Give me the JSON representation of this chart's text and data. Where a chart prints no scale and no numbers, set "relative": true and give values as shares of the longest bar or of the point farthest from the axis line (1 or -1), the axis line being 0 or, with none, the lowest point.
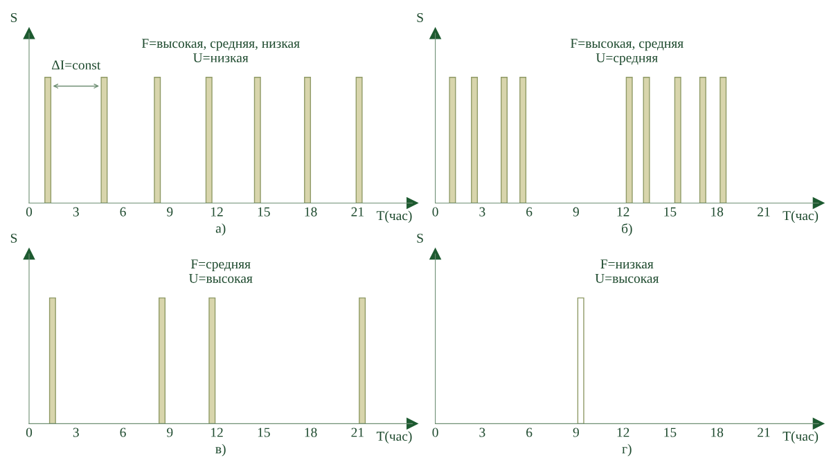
{
  "chart_data": [
    {
      "type": "bar",
      "title": "а)",
      "ylabel": "S",
      "xlabel": "T(час)",
      "relative": true,
      "color": "#d8d5ac",
      "x": [
        1.2,
        4.8,
        8.2,
        11.5,
        14.6,
        17.8,
        21.1
      ],
      "values": [
        1,
        1,
        1,
        1,
        1,
        1,
        1
      ],
      "xlim": [
        0,
        24.5
      ],
      "xticks": [
        0,
        3,
        6,
        9,
        12,
        15,
        18,
        21
      ],
      "tick_labels": "x",
      "grid": false,
      "annotations": [
        "F=высокая, средняя, низкая",
        "U=низкая",
        "ΔI=const"
      ]
    },
    {
      "type": "bar",
      "title": "б)",
      "ylabel": "S",
      "xlabel": "T(час)",
      "relative": true,
      "color": "#d8d5ac",
      "x": [
        1.1,
        2.5,
        4.4,
        5.6,
        12.4,
        13.5,
        15.5,
        17.1,
        18.4
      ],
      "values": [
        1,
        1,
        1,
        1,
        1,
        1,
        1,
        1,
        1
      ],
      "xlim": [
        0,
        24.5
      ],
      "xticks": [
        0,
        3,
        6,
        9,
        12,
        15,
        18,
        21
      ],
      "tick_labels": "x",
      "grid": false,
      "annotations": [
        "F=высокая, средняя",
        "U=средняя"
      ]
    },
    {
      "type": "bar",
      "title": "в)",
      "ylabel": "S",
      "xlabel": "T(час)",
      "relative": true,
      "color": "#d8d5ac",
      "x": [
        1.5,
        8.5,
        11.7,
        21.3
      ],
      "values": [
        1,
        1,
        1,
        1
      ],
      "xlim": [
        0,
        24.5
      ],
      "xticks": [
        0,
        3,
        6,
        9,
        12,
        15,
        18,
        21
      ],
      "tick_labels": "x",
      "grid": false,
      "annotations": [
        "F=средняя",
        "U=высокая"
      ]
    },
    {
      "type": "bar",
      "title": "г)",
      "ylabel": "S",
      "xlabel": "T(час)",
      "relative": true,
      "color": "#ffffff",
      "x": [
        9.3
      ],
      "values": [
        1
      ],
      "xlim": [
        0,
        24.5
      ],
      "xticks": [
        0,
        3,
        6,
        9,
        12,
        15,
        18,
        21
      ],
      "tick_labels": "x",
      "grid": false,
      "annotations": [
        "F=низкая",
        "U=высокая"
      ]
    }
  ]
}
